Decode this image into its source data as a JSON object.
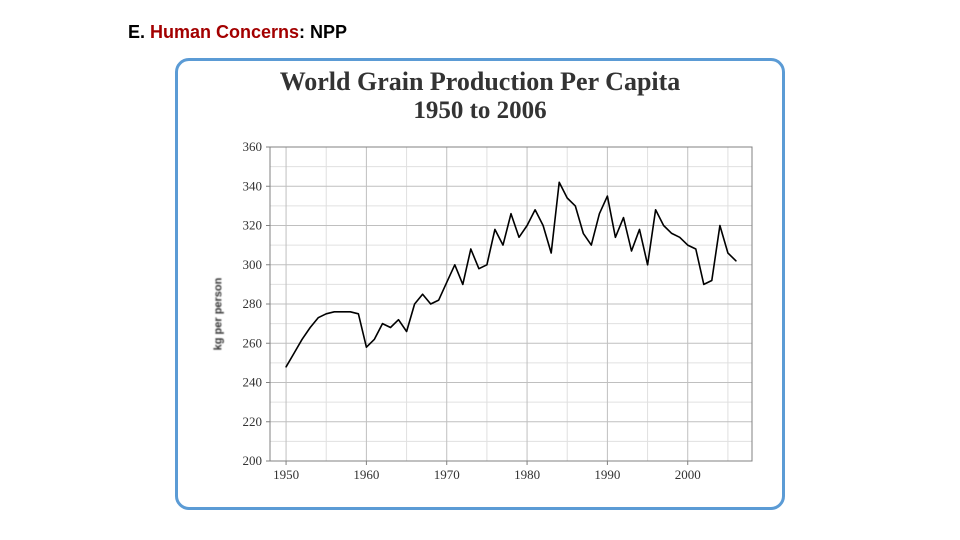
{
  "heading": {
    "prefix": "E. ",
    "title": "Human Concerns",
    "suffix": ": NPP",
    "prefix_color": "#000000",
    "title_color": "#a30000",
    "suffix_color": "#000000",
    "fontsize": 18,
    "fontweight": "bold"
  },
  "chart": {
    "type": "line",
    "card_border_color": "#5b9bd5",
    "card_border_width": 3,
    "card_border_radius": 14,
    "card_background": "#ffffff",
    "title_line1": "World Grain Production Per Capita",
    "title_line2": "1950 to 2006",
    "title_font": "Georgia, serif",
    "title_color": "#333333",
    "title_fontsize_line1": 26,
    "title_fontsize_line2": 25,
    "title_fontweight": "bold",
    "ylabel": "kg per person",
    "ylabel_fontsize": 11,
    "xlim": [
      1948,
      2008
    ],
    "ylim": [
      200,
      360
    ],
    "xticks": [
      1950,
      1960,
      1970,
      1980,
      1990,
      2000
    ],
    "yticks": [
      200,
      220,
      240,
      260,
      280,
      300,
      320,
      340,
      360
    ],
    "xtick_labels": [
      "1950",
      "1960",
      "1970",
      "1980",
      "1990",
      "2000"
    ],
    "ytick_labels": [
      "200",
      "220",
      "240",
      "260",
      "280",
      "300",
      "320",
      "340",
      "360"
    ],
    "tick_fontsize": 13,
    "tick_font": "Georgia, serif",
    "tick_color": "#333333",
    "axis_line_color": "#808080",
    "axis_line_width": 1,
    "grid": true,
    "grid_major_x": [
      1950,
      1960,
      1970,
      1980,
      1990,
      2000
    ],
    "grid_major_y": [
      200,
      220,
      240,
      260,
      280,
      300,
      320,
      340,
      360
    ],
    "grid_major_color": "#bfbfbf",
    "grid_major_width": 1,
    "grid_minor_x": [
      1955,
      1965,
      1975,
      1985,
      1995,
      2005
    ],
    "grid_minor_y": [
      210,
      230,
      250,
      270,
      290,
      310,
      330,
      350
    ],
    "grid_minor_color": "#e0e0e0",
    "grid_minor_width": 1,
    "line_color": "#000000",
    "line_width": 1.6,
    "background_color": "#ffffff",
    "series": {
      "name": "grain_per_capita",
      "x": [
        1950,
        1951,
        1952,
        1953,
        1954,
        1955,
        1956,
        1957,
        1958,
        1959,
        1960,
        1961,
        1962,
        1963,
        1964,
        1965,
        1966,
        1967,
        1968,
        1969,
        1970,
        1971,
        1972,
        1973,
        1974,
        1975,
        1976,
        1977,
        1978,
        1979,
        1980,
        1981,
        1982,
        1983,
        1984,
        1985,
        1986,
        1987,
        1988,
        1989,
        1990,
        1991,
        1992,
        1993,
        1994,
        1995,
        1996,
        1997,
        1998,
        1999,
        2000,
        2001,
        2002,
        2003,
        2004,
        2005,
        2006
      ],
      "y": [
        248,
        255,
        262,
        268,
        273,
        275,
        276,
        276,
        276,
        275,
        258,
        262,
        270,
        268,
        272,
        266,
        280,
        285,
        280,
        282,
        291,
        300,
        290,
        308,
        298,
        300,
        318,
        310,
        326,
        314,
        320,
        328,
        320,
        306,
        342,
        334,
        330,
        316,
        310,
        326,
        335,
        314,
        324,
        307,
        318,
        300,
        328,
        320,
        316,
        314,
        310,
        308,
        290,
        292,
        320,
        306,
        302
      ]
    }
  }
}
